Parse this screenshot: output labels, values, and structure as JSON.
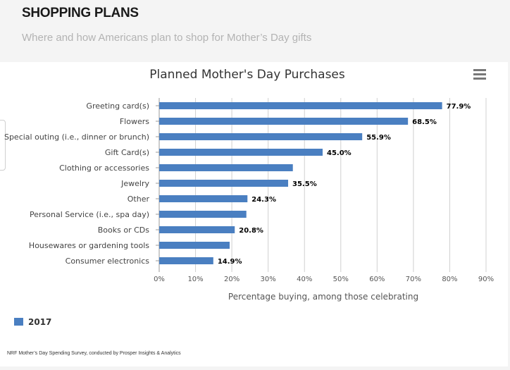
{
  "header": {
    "title": "SHOPPING PLANS",
    "subtitle": "Where and how Americans plan to shop for Mother’s Day gifts"
  },
  "menu": {
    "icon": "hamburger-icon"
  },
  "footnote": "NRF Mother’s Day Spending Survey, conducted by Prosper Insights & Analytics",
  "chart_data": {
    "type": "bar",
    "orientation": "horizontal",
    "title": "Planned Mother's Day Purchases",
    "xlabel": "Percentage buying, among those celebrating",
    "ylabel": "",
    "xlim": [
      0,
      90
    ],
    "xticks": [
      "0%",
      "10%",
      "20%",
      "30%",
      "40%",
      "50%",
      "60%",
      "70%",
      "80%",
      "90%"
    ],
    "grid": true,
    "legend_position": "bottom-left",
    "bar_color": "#4a7fc1",
    "categories": [
      "Greeting card(s)",
      "Flowers",
      "Special outing (i.e., dinner or brunch)",
      "Gift Card(s)",
      "Clothing or accessories",
      "Jewelry",
      "Other",
      "Personal Service (i.e., spa day)",
      "Books or CDs",
      "Housewares or gardening tools",
      "Consumer electronics"
    ],
    "series": [
      {
        "name": "2017",
        "values": [
          77.9,
          68.5,
          55.9,
          45.0,
          36.8,
          35.5,
          24.3,
          24.0,
          20.8,
          19.4,
          14.9
        ],
        "labels": [
          "77.9%",
          "68.5%",
          "55.9%",
          "45.0%",
          "",
          "35.5%",
          "24.3%",
          "",
          "20.8%",
          "",
          "14.9%"
        ]
      }
    ]
  }
}
